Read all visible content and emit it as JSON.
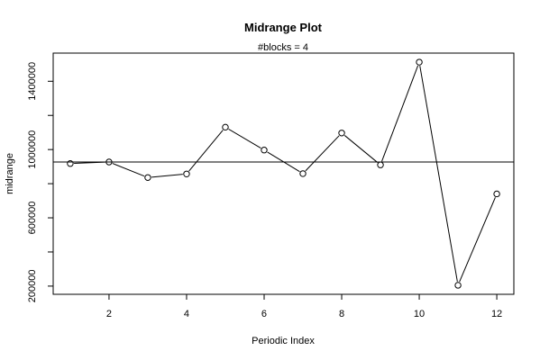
{
  "chart_data": {
    "type": "line",
    "title": "Midrange Plot",
    "subtitle": "#blocks =  4",
    "xlabel": "Periodic Index",
    "ylabel": "midrange",
    "x": [
      1,
      2,
      3,
      4,
      5,
      6,
      7,
      8,
      9,
      10,
      11,
      12
    ],
    "values": [
      918000,
      927000,
      836000,
      857000,
      1131000,
      997000,
      859000,
      1097000,
      910000,
      1512000,
      205000,
      740000
    ],
    "reference_line": 927000,
    "x_ticks": [
      2,
      4,
      6,
      8,
      10,
      12
    ],
    "y_ticks": [
      200000,
      600000,
      1000000,
      1400000
    ],
    "y_minor_ticks": [
      400000,
      800000,
      1200000
    ],
    "xlim": [
      0.56,
      12.44
    ],
    "ylim": [
      152000,
      1565000
    ],
    "marker": "open-circle",
    "grid": false,
    "legend": "none"
  }
}
